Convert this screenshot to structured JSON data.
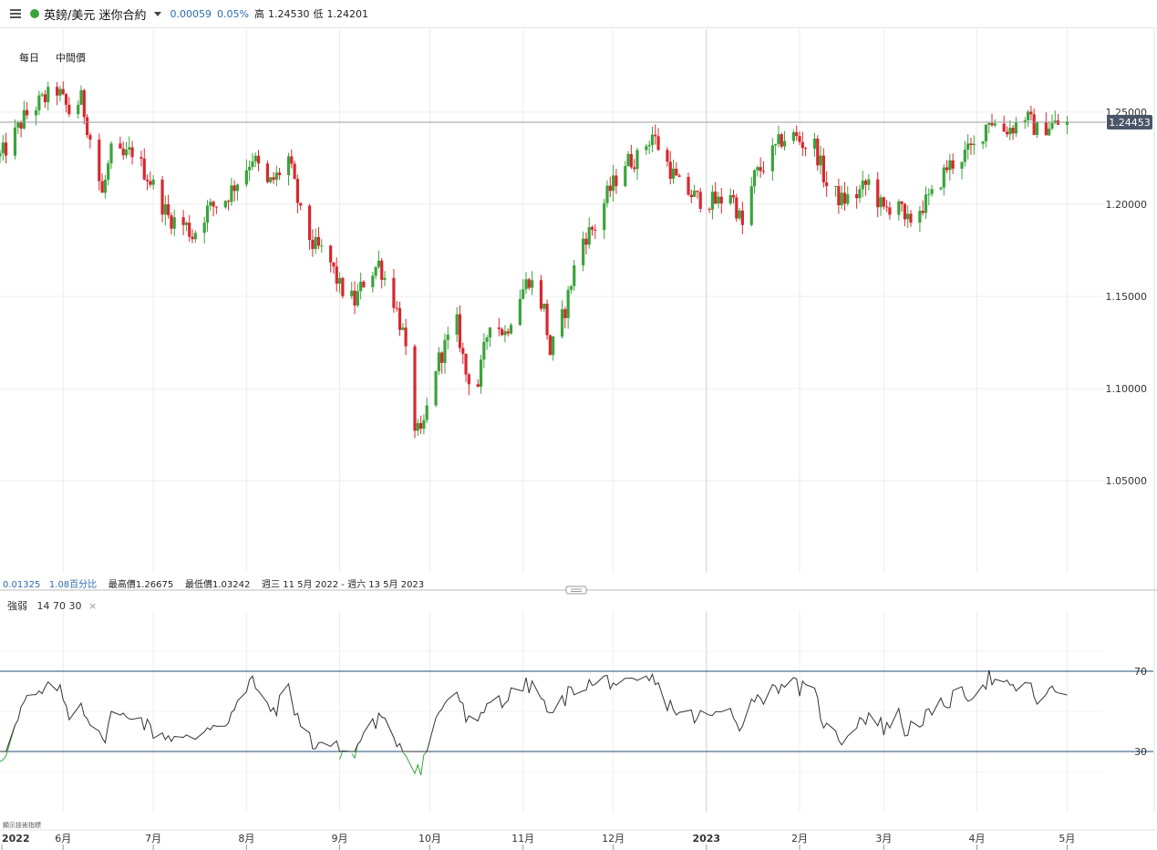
{
  "header": {
    "instrument": "英鎊/美元 迷你合約",
    "change": "0.00059",
    "change_pct": "0.05%",
    "high_label": "高",
    "high": "1.24530",
    "low_label": "低",
    "low": "1.24201",
    "icons": [
      "menu-icon",
      "status-dot",
      "chevron-down-icon"
    ],
    "status_color": "#3ba33b"
  },
  "options": {
    "interval": "每日",
    "price_type": "中間價"
  },
  "info_line": {
    "change": "0.01325",
    "change_pct": "1.08百分比",
    "max_label": "最高價",
    "max": "1.26675",
    "min_label": "最低價",
    "min": "1.03242",
    "range": "週三 11 5月 2022 - 週六 13 5月 2023"
  },
  "rsi": {
    "name": "強弱",
    "params": "14  70  30",
    "close_icon": "close-icon",
    "upper": 70,
    "lower": 30
  },
  "watermark": "顯示技術指標",
  "chart_data": {
    "type": "candlestick",
    "colors": {
      "up": "#3ba33b",
      "down": "#d7282f",
      "last_price_tag": "#4a5568",
      "rsi_line": "#333333",
      "rsi_zone": "#3ba33b",
      "threshold": "#1f4e79"
    },
    "last_price": "1.24453",
    "y_ticks": [
      "1.25000",
      "1.20000",
      "1.15000",
      "1.10000",
      "1.05000"
    ],
    "y_tick_values": [
      1.25,
      1.2,
      1.15,
      1.1,
      1.05
    ],
    "ylim": [
      1.0,
      1.295
    ],
    "x_labels": [
      "2022",
      "6月",
      "7月",
      "8月",
      "9月",
      "10月",
      "11月",
      "12月",
      "2023",
      "2月",
      "3月",
      "4月",
      "5月"
    ],
    "x_label_dates": [
      "2022-05-11",
      "2022-06-01",
      "2022-07-01",
      "2022-08-01",
      "2022-09-01",
      "2022-10-01",
      "2022-11-01",
      "2022-12-01",
      "2023-01-01",
      "2023-02-01",
      "2023-03-01",
      "2023-04-01",
      "2023-05-01"
    ],
    "date_range": [
      "2022-05-11",
      "2023-05-13"
    ],
    "rsi_ticks": [
      "70",
      "30"
    ],
    "close_path": [
      [
        "2022-05-11",
        1.226
      ],
      [
        "2022-05-14",
        1.232
      ],
      [
        "2022-05-19",
        1.247
      ],
      [
        "2022-05-24",
        1.255
      ],
      [
        "2022-05-30",
        1.262
      ],
      [
        "2022-06-03",
        1.25
      ],
      [
        "2022-06-07",
        1.257
      ],
      [
        "2022-06-10",
        1.236
      ],
      [
        "2022-06-14",
        1.205
      ],
      [
        "2022-06-17",
        1.228
      ],
      [
        "2022-06-21",
        1.225
      ],
      [
        "2022-06-24",
        1.229
      ],
      [
        "2022-06-28",
        1.218
      ],
      [
        "2022-07-01",
        1.21
      ],
      [
        "2022-07-06",
        1.193
      ],
      [
        "2022-07-12",
        1.188
      ],
      [
        "2022-07-14",
        1.183
      ],
      [
        "2022-07-19",
        1.197
      ],
      [
        "2022-07-25",
        1.203
      ],
      [
        "2022-08-01",
        1.22
      ],
      [
        "2022-08-03",
        1.226
      ],
      [
        "2022-08-08",
        1.21
      ],
      [
        "2022-08-11",
        1.215
      ],
      [
        "2022-08-15",
        1.225
      ],
      [
        "2022-08-19",
        1.194
      ],
      [
        "2022-08-23",
        1.178
      ],
      [
        "2022-08-28",
        1.172
      ],
      [
        "2022-09-01",
        1.155
      ],
      [
        "2022-09-06",
        1.147
      ],
      [
        "2022-09-09",
        1.158
      ],
      [
        "2022-09-14",
        1.168
      ],
      [
        "2022-09-19",
        1.148
      ],
      [
        "2022-09-22",
        1.13
      ],
      [
        "2022-09-26",
        1.08
      ],
      [
        "2022-09-28",
        1.073
      ],
      [
        "2022-10-03",
        1.112
      ],
      [
        "2022-10-06",
        1.123
      ],
      [
        "2022-10-10",
        1.135
      ],
      [
        "2022-10-13",
        1.108
      ],
      [
        "2022-10-17",
        1.102
      ],
      [
        "2022-10-21",
        1.138
      ],
      [
        "2022-10-26",
        1.13
      ],
      [
        "2022-10-30",
        1.148
      ],
      [
        "2022-11-03",
        1.16
      ],
      [
        "2022-11-08",
        1.143
      ],
      [
        "2022-11-10",
        1.119
      ],
      [
        "2022-11-15",
        1.143
      ],
      [
        "2022-11-20",
        1.18
      ],
      [
        "2022-11-25",
        1.188
      ],
      [
        "2022-11-29",
        1.205
      ],
      [
        "2022-12-05",
        1.223
      ],
      [
        "2022-12-09",
        1.225
      ],
      [
        "2022-12-14",
        1.238
      ],
      [
        "2022-12-18",
        1.225
      ],
      [
        "2022-12-23",
        1.21
      ],
      [
        "2022-12-29",
        1.203
      ],
      [
        "2023-01-05",
        1.201
      ],
      [
        "2023-01-09",
        1.207
      ],
      [
        "2023-01-13",
        1.188
      ],
      [
        "2023-01-17",
        1.215
      ],
      [
        "2023-01-22",
        1.225
      ],
      [
        "2023-01-26",
        1.235
      ],
      [
        "2023-01-29",
        1.238
      ],
      [
        "2023-02-03",
        1.232
      ],
      [
        "2023-02-06",
        1.232
      ],
      [
        "2023-02-10",
        1.21
      ],
      [
        "2023-02-15",
        1.202
      ],
      [
        "2023-02-20",
        1.205
      ],
      [
        "2023-02-24",
        1.212
      ],
      [
        "2023-03-01",
        1.196
      ],
      [
        "2023-03-06",
        1.203
      ],
      [
        "2023-03-08",
        1.188
      ],
      [
        "2023-03-13",
        1.198
      ],
      [
        "2023-03-17",
        1.204
      ],
      [
        "2023-03-22",
        1.22
      ],
      [
        "2023-03-27",
        1.226
      ],
      [
        "2023-04-01",
        1.232
      ],
      [
        "2023-04-05",
        1.247
      ],
      [
        "2023-04-09",
        1.24
      ],
      [
        "2023-04-13",
        1.242
      ],
      [
        "2023-04-17",
        1.248
      ],
      [
        "2023-04-21",
        1.24
      ],
      [
        "2023-04-25",
        1.243
      ],
      [
        "2023-05-01",
        1.244
      ]
    ],
    "rsi_path": [
      [
        "2022-05-11",
        27
      ],
      [
        "2022-05-14",
        33
      ],
      [
        "2022-05-19",
        54
      ],
      [
        "2022-05-24",
        58
      ],
      [
        "2022-05-30",
        63
      ],
      [
        "2022-06-03",
        49
      ],
      [
        "2022-06-07",
        55
      ],
      [
        "2022-06-10",
        45
      ],
      [
        "2022-06-14",
        34
      ],
      [
        "2022-06-17",
        48
      ],
      [
        "2022-06-21",
        47
      ],
      [
        "2022-06-24",
        50
      ],
      [
        "2022-06-28",
        44
      ],
      [
        "2022-07-01",
        40
      ],
      [
        "2022-07-06",
        38
      ],
      [
        "2022-07-12",
        36
      ],
      [
        "2022-07-14",
        35
      ],
      [
        "2022-07-19",
        43
      ],
      [
        "2022-07-25",
        45
      ],
      [
        "2022-08-01",
        59
      ],
      [
        "2022-08-03",
        67
      ],
      [
        "2022-08-08",
        50
      ],
      [
        "2022-08-11",
        52
      ],
      [
        "2022-08-15",
        61
      ],
      [
        "2022-08-19",
        43
      ],
      [
        "2022-08-23",
        34
      ],
      [
        "2022-08-28",
        35
      ],
      [
        "2022-09-01",
        30
      ],
      [
        "2022-09-06",
        28
      ],
      [
        "2022-09-09",
        40
      ],
      [
        "2022-09-14",
        46
      ],
      [
        "2022-09-19",
        38
      ],
      [
        "2022-09-22",
        32
      ],
      [
        "2022-09-26",
        23
      ],
      [
        "2022-09-28",
        22
      ],
      [
        "2022-10-03",
        45
      ],
      [
        "2022-10-06",
        55
      ],
      [
        "2022-10-10",
        60
      ],
      [
        "2022-10-13",
        46
      ],
      [
        "2022-10-17",
        42
      ],
      [
        "2022-10-21",
        58
      ],
      [
        "2022-10-26",
        55
      ],
      [
        "2022-10-30",
        61
      ],
      [
        "2022-11-03",
        63
      ],
      [
        "2022-11-08",
        55
      ],
      [
        "2022-11-10",
        46
      ],
      [
        "2022-11-15",
        57
      ],
      [
        "2022-11-20",
        64
      ],
      [
        "2022-11-25",
        63
      ],
      [
        "2022-11-29",
        66
      ],
      [
        "2022-12-05",
        62
      ],
      [
        "2022-12-09",
        63
      ],
      [
        "2022-12-14",
        66
      ],
      [
        "2022-12-18",
        56
      ],
      [
        "2022-12-23",
        49
      ],
      [
        "2022-12-29",
        47
      ],
      [
        "2023-01-05",
        48
      ],
      [
        "2023-01-09",
        52
      ],
      [
        "2023-01-13",
        42
      ],
      [
        "2023-01-17",
        58
      ],
      [
        "2023-01-22",
        58
      ],
      [
        "2023-01-26",
        65
      ],
      [
        "2023-01-29",
        64
      ],
      [
        "2023-02-03",
        60
      ],
      [
        "2023-02-06",
        58
      ],
      [
        "2023-02-10",
        41
      ],
      [
        "2023-02-15",
        36
      ],
      [
        "2023-02-20",
        45
      ],
      [
        "2023-02-24",
        48
      ],
      [
        "2023-03-01",
        42
      ],
      [
        "2023-03-06",
        48
      ],
      [
        "2023-03-08",
        40
      ],
      [
        "2023-03-13",
        46
      ],
      [
        "2023-03-17",
        48
      ],
      [
        "2023-03-22",
        55
      ],
      [
        "2023-03-27",
        58
      ],
      [
        "2023-04-01",
        60
      ],
      [
        "2023-04-05",
        67
      ],
      [
        "2023-04-09",
        62
      ],
      [
        "2023-04-13",
        61
      ],
      [
        "2023-04-17",
        65
      ],
      [
        "2023-04-21",
        56
      ],
      [
        "2023-04-25",
        59
      ],
      [
        "2023-05-01",
        60
      ]
    ]
  }
}
